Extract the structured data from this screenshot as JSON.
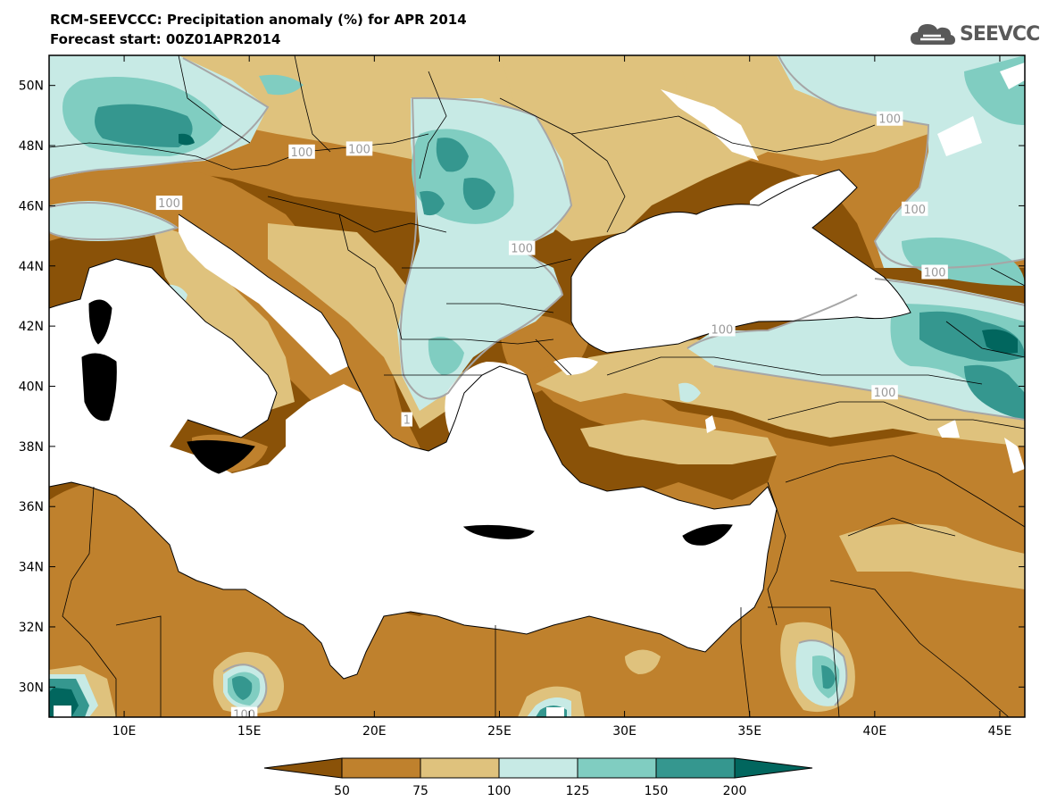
{
  "title": {
    "line1": "RCM-SEEVCCC: Precipitation anomaly (%) for APR 2014",
    "line2": "Forecast start: 00Z01APR2014"
  },
  "logo": {
    "icon": "cloud-icon",
    "text": "SEEVCCC"
  },
  "map": {
    "lon_range": [
      7,
      46
    ],
    "lat_range": [
      29,
      51
    ],
    "lon_ticks": [
      {
        "value": 10,
        "label": "10E"
      },
      {
        "value": 15,
        "label": "15E"
      },
      {
        "value": 20,
        "label": "20E"
      },
      {
        "value": 25,
        "label": "25E"
      },
      {
        "value": 30,
        "label": "30E"
      },
      {
        "value": 35,
        "label": "35E"
      },
      {
        "value": 40,
        "label": "40E"
      },
      {
        "value": 45,
        "label": "45E"
      }
    ],
    "lat_ticks": [
      {
        "value": 30,
        "label": "30N"
      },
      {
        "value": 32,
        "label": "32N"
      },
      {
        "value": 34,
        "label": "34N"
      },
      {
        "value": 36,
        "label": "36N"
      },
      {
        "value": 38,
        "label": "38N"
      },
      {
        "value": 40,
        "label": "40N"
      },
      {
        "value": 42,
        "label": "42N"
      },
      {
        "value": 44,
        "label": "44N"
      },
      {
        "value": 46,
        "label": "46N"
      },
      {
        "value": 48,
        "label": "48N"
      },
      {
        "value": 50,
        "label": "50N"
      }
    ],
    "contour_labels": [
      {
        "lon": 11.8,
        "lat": 46.1,
        "text": "100"
      },
      {
        "lon": 17.1,
        "lat": 47.8,
        "text": "100"
      },
      {
        "lon": 19.4,
        "lat": 47.9,
        "text": "100"
      },
      {
        "lon": 25.9,
        "lat": 44.6,
        "text": "100"
      },
      {
        "lon": 40.6,
        "lat": 48.9,
        "text": "100"
      },
      {
        "lon": 41.6,
        "lat": 45.9,
        "text": "100"
      },
      {
        "lon": 42.4,
        "lat": 43.8,
        "text": "100"
      },
      {
        "lon": 33.9,
        "lat": 41.9,
        "text": "100"
      },
      {
        "lon": 40.4,
        "lat": 39.8,
        "text": "100"
      },
      {
        "lon": 14.8,
        "lat": 29.1,
        "text": "100"
      },
      {
        "lon": 21.3,
        "lat": 38.9,
        "text": "1"
      }
    ]
  },
  "colors": {
    "c_lt50": "#8a5208",
    "c_50_75": "#bf812d",
    "c_75_100": "#dfc27d",
    "c_100_125": "#c7eae5",
    "c_125_150": "#80cdc1",
    "c_150_200": "#35978f",
    "c_gt200": "#01665e",
    "sea": "#ffffff",
    "contour": "#a6a6a6"
  },
  "colorbar": {
    "labels": [
      "50",
      "75",
      "100",
      "125",
      "150",
      "200"
    ]
  }
}
